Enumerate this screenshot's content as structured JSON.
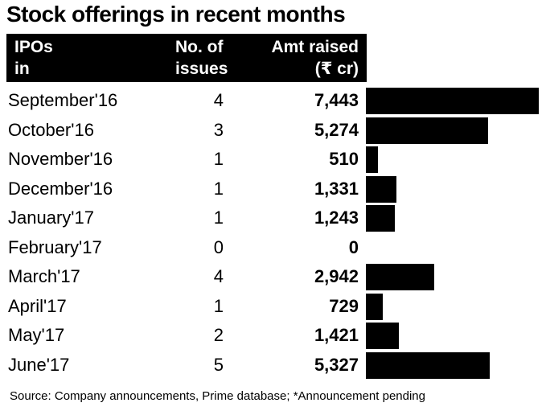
{
  "title": "Stock offerings in recent months",
  "chart_data": {
    "type": "bar",
    "title": "Stock offerings in recent months",
    "headers": {
      "ipo_line1": "IPOs",
      "ipo_line2": "in",
      "issues_line1": "No. of",
      "issues_line2": "issues",
      "amt_line1": "Amt raised",
      "amt_line2": "(₹ cr)"
    },
    "categories": [
      "September'16",
      "October'16",
      "November'16",
      "December'16",
      "January'17",
      "February'17",
      "March'17",
      "April'17",
      "May'17",
      "June'17"
    ],
    "series": [
      {
        "name": "No. of issues",
        "values": [
          4,
          3,
          1,
          1,
          1,
          0,
          4,
          1,
          2,
          5
        ]
      },
      {
        "name": "Amt raised (₹ cr)",
        "values": [
          7443,
          5274,
          510,
          1331,
          1243,
          0,
          2942,
          729,
          1421,
          5327
        ]
      }
    ],
    "value_labels": [
      "7,443",
      "5,274",
      "510",
      "1,331",
      "1,243",
      "0",
      "2,942",
      "729",
      "1,421",
      "5,327"
    ],
    "issues_labels": [
      "4",
      "3",
      "1",
      "1",
      "1",
      "0",
      "4",
      "1",
      "2",
      "5"
    ],
    "xlim": [
      0,
      7443
    ]
  },
  "source": "Source: Company announcements, Prime database; *Announcement pending"
}
